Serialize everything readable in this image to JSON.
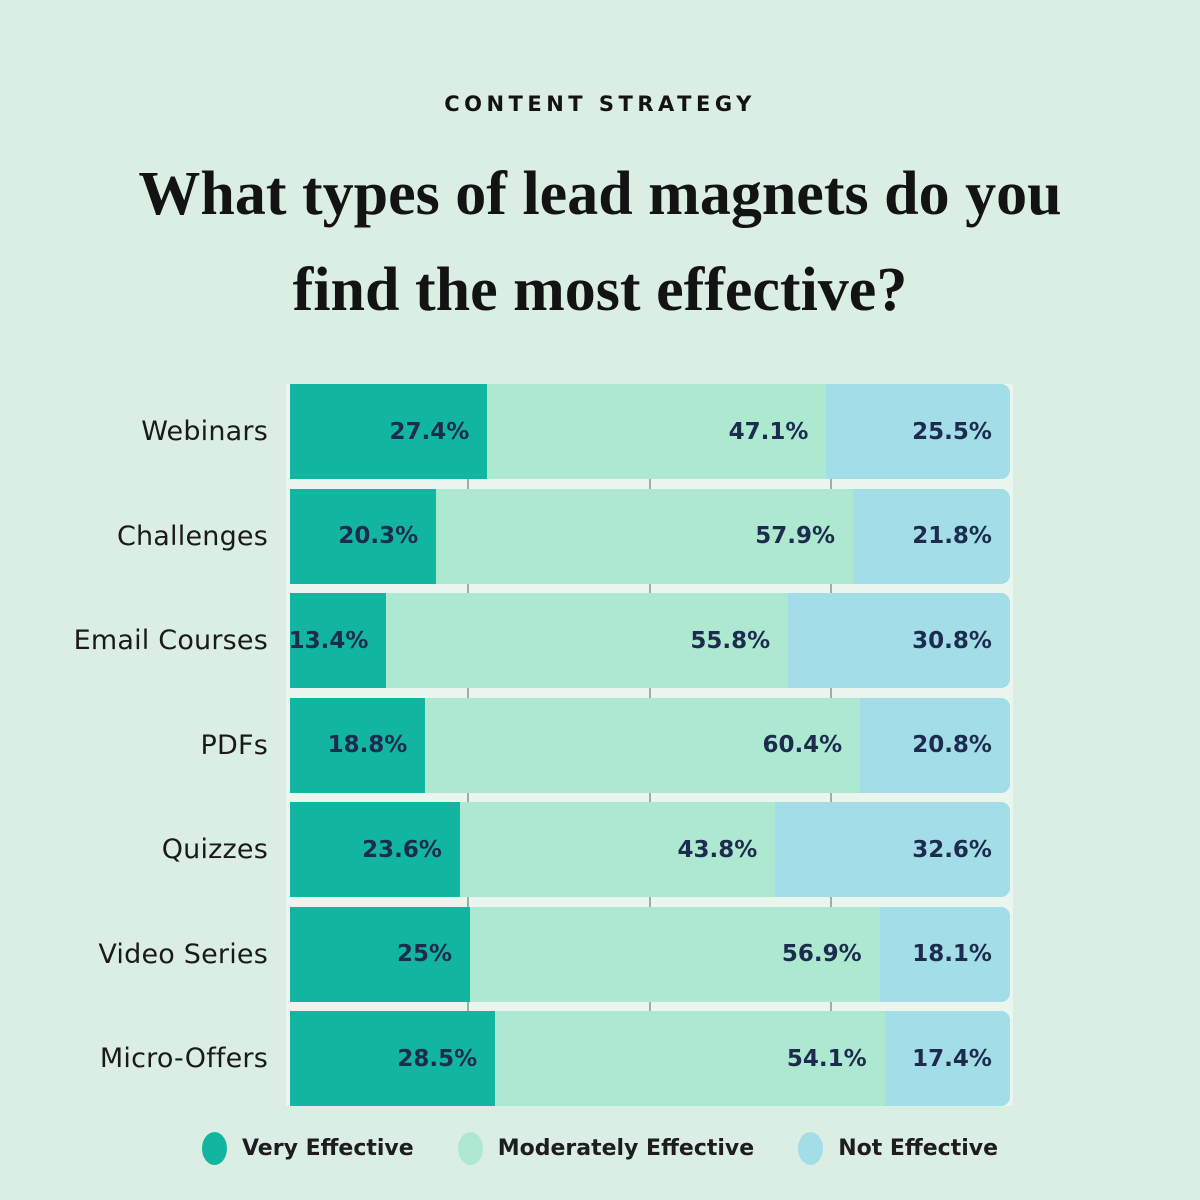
{
  "eyebrow": "CONTENT STRATEGY",
  "title_line1": "What types of lead magnets do you",
  "title_line2": "find the most effective?",
  "chart_data": {
    "type": "bar",
    "stacked": true,
    "orientation": "horizontal",
    "unit": "%",
    "xlim": [
      0,
      100
    ],
    "grid_on": true,
    "gridlines_pct": [
      25,
      50,
      75
    ],
    "legend_position": "bottom",
    "categories": [
      "Webinars",
      "Challenges",
      "Email Courses",
      "PDFs",
      "Quizzes",
      "Video Series",
      "Micro-Offers"
    ],
    "series": [
      {
        "name": "Very Effective",
        "color": "#12b5a0",
        "values": [
          27.4,
          20.3,
          13.4,
          18.8,
          23.6,
          25,
          28.5
        ]
      },
      {
        "name": "Moderately Effective",
        "color": "#ade8d1",
        "values": [
          47.1,
          57.9,
          55.8,
          60.4,
          43.8,
          56.9,
          54.1
        ]
      },
      {
        "name": "Not Effective",
        "color": "#a2dde8",
        "values": [
          25.5,
          21.8,
          30.8,
          20.8,
          32.6,
          18.1,
          17.4
        ]
      }
    ],
    "value_labels": [
      [
        "27.4%",
        "47.1%",
        "25.5%"
      ],
      [
        "20.3%",
        "57.9%",
        "21.8%"
      ],
      [
        "13.4%",
        "55.8%",
        "30.8%"
      ],
      [
        "18.8%",
        "60.4%",
        "20.8%"
      ],
      [
        "23.6%",
        "43.8%",
        "32.6%"
      ],
      [
        "25%",
        "56.9%",
        "18.1%"
      ],
      [
        "28.5%",
        "54.1%",
        "17.4%"
      ]
    ]
  },
  "legend": [
    {
      "label": "Very Effective",
      "color": "#12b5a0"
    },
    {
      "label": "Moderately Effective",
      "color": "#ade8d1"
    },
    {
      "label": "Not Effective",
      "color": "#a2dde8"
    }
  ],
  "colors": {
    "page_bg": "#dbeee4",
    "plot_bg": "#eaf5ee",
    "gridline": "#9fada4",
    "value_text": "#1c2b4e",
    "heading_text": "#131313",
    "label_text": "#1a1a1a"
  }
}
